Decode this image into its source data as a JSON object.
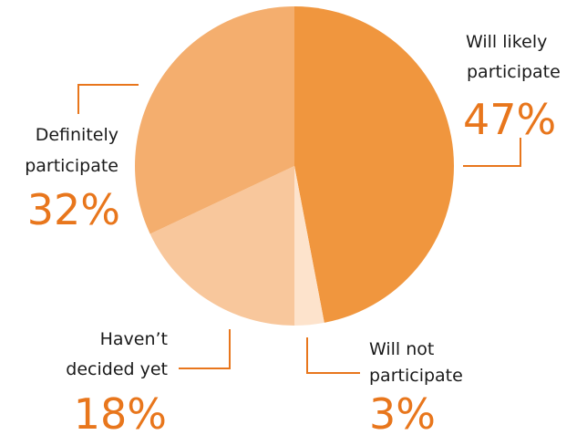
{
  "chart_data": {
    "type": "pie",
    "title": "",
    "legend": "none",
    "slices": [
      {
        "label_lines": [
          "Will likely",
          "participate"
        ],
        "value": 47,
        "percent_label": "47%",
        "color": "#f0963e"
      },
      {
        "label_lines": [
          "Will not",
          "participate"
        ],
        "value": 3,
        "percent_label": "3%",
        "color": "#fde3cc"
      },
      {
        "label_lines": [
          "Haven’t",
          "decided yet"
        ],
        "value": 18,
        "percent_label": "18%",
        "color": "#f8c79c"
      },
      {
        "label_lines": [
          "Definitely",
          "participate"
        ],
        "value": 32,
        "percent_label": "32%",
        "color": "#f4ae6e"
      }
    ]
  },
  "colors": {
    "accent": "#e8761c",
    "label_text": "#1a1a1a",
    "background": "#ffffff"
  }
}
